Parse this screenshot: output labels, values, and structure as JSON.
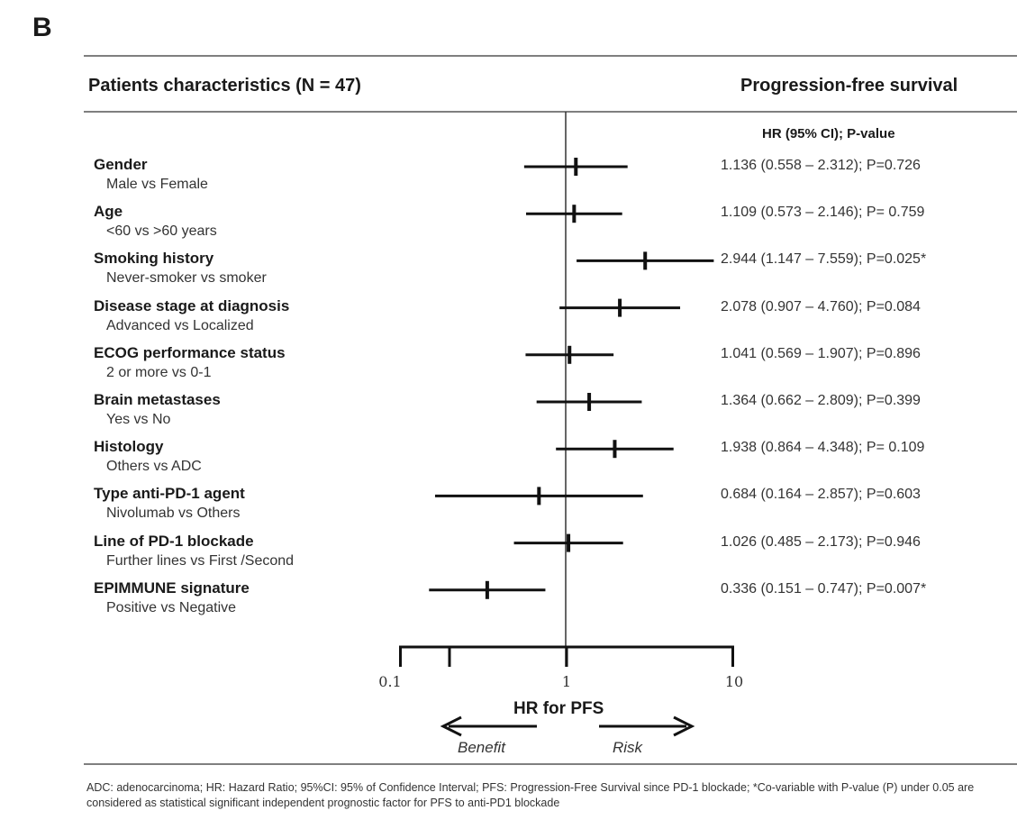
{
  "panel_label": "B",
  "header": {
    "left": "Patients characteristics (N = 47)",
    "right": "Progression-free survival",
    "hr_column": "HR (95% CI); P-value"
  },
  "chart_data": {
    "type": "forest",
    "x_scale": "log",
    "xlim": [
      0.1,
      10
    ],
    "x_ticks": [
      "0.1",
      "1",
      "10"
    ],
    "xlabel": "HR for PFS",
    "reference_line": 1,
    "directions": {
      "left": "Benefit",
      "right": "Risk"
    },
    "rows": [
      {
        "name": "Gender",
        "comparison": "Male vs Female",
        "hr": 1.136,
        "lo": 0.558,
        "hi": 2.312,
        "label": "1.136 (0.558 – 2.312); P=0.726"
      },
      {
        "name": "Age",
        "comparison": "<60 vs >60 years",
        "hr": 1.109,
        "lo": 0.573,
        "hi": 2.146,
        "label": "1.109 (0.573 – 2.146); P= 0.759"
      },
      {
        "name": "Smoking history",
        "comparison": "Never-smoker vs smoker",
        "hr": 2.944,
        "lo": 1.147,
        "hi": 7.559,
        "label": "2.944 (1.147 – 7.559); P=0.025*"
      },
      {
        "name": "Disease stage at diagnosis",
        "comparison": "Advanced vs Localized",
        "hr": 2.078,
        "lo": 0.907,
        "hi": 4.76,
        "label": "2.078 (0.907 – 4.760); P=0.084"
      },
      {
        "name": "ECOG performance status",
        "comparison": "2 or more vs 0-1",
        "hr": 1.041,
        "lo": 0.569,
        "hi": 1.907,
        "label": "1.041 (0.569 – 1.907); P=0.896"
      },
      {
        "name": "Brain metastases",
        "comparison": "Yes vs No",
        "hr": 1.364,
        "lo": 0.662,
        "hi": 2.809,
        "label": "1.364 (0.662 – 2.809); P=0.399"
      },
      {
        "name": "Histology",
        "comparison": "Others vs ADC",
        "hr": 1.938,
        "lo": 0.864,
        "hi": 4.348,
        "label": "1.938 (0.864 – 4.348); P= 0.109"
      },
      {
        "name": "Type anti-PD-1 agent",
        "comparison": "Nivolumab vs Others",
        "hr": 0.684,
        "lo": 0.164,
        "hi": 2.857,
        "label": "0.684 (0.164 – 2.857); P=0.603"
      },
      {
        "name": "Line of PD-1 blockade",
        "comparison": "Further lines vs First /Second",
        "hr": 1.026,
        "lo": 0.485,
        "hi": 2.173,
        "label": "1.026 (0.485 – 2.173); P=0.946"
      },
      {
        "name": "EPIMMUNE signature",
        "comparison": "Positive vs Negative",
        "hr": 0.336,
        "lo": 0.151,
        "hi": 0.747,
        "label": "0.336 (0.151 – 0.747); P=0.007*"
      }
    ]
  },
  "footnote": "ADC: adenocarcinoma; HR: Hazard Ratio; 95%CI: 95% of Confidence Interval; PFS: Progression-Free Survival since PD-1 blockade; *Co-variable with P-value (P) under 0.05 are considered as statistical significant independent prognostic factor for PFS to anti-PD1 blockade"
}
